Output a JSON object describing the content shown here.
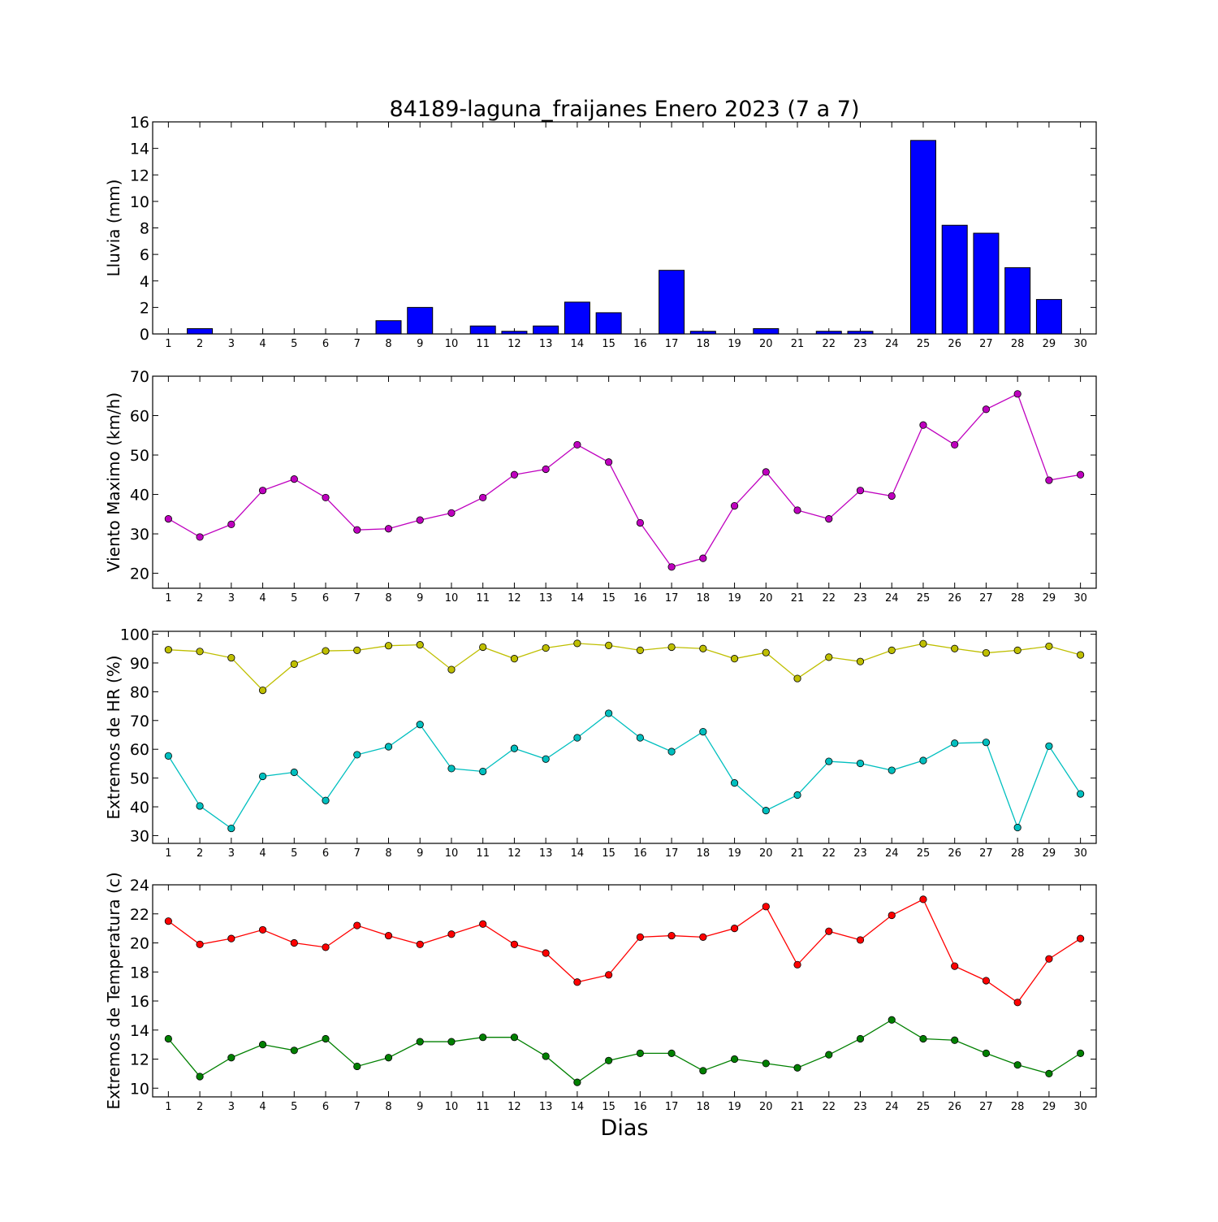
{
  "title": "84189-laguna_fraijanes Enero 2023  (7 a 7)",
  "xlabel": "Dias",
  "chart_data": [
    {
      "type": "bar",
      "ylabel": "Lluvia (mm)",
      "ylim": [
        0,
        16
      ],
      "yticks": [
        0,
        2,
        4,
        6,
        8,
        10,
        12,
        14,
        16
      ],
      "x": [
        1,
        2,
        3,
        4,
        5,
        6,
        7,
        8,
        9,
        10,
        11,
        12,
        13,
        14,
        15,
        16,
        17,
        18,
        19,
        20,
        21,
        22,
        23,
        24,
        25,
        26,
        27,
        28,
        29,
        30
      ],
      "series": [
        {
          "color": "#0000ff",
          "values": [
            0,
            0.4,
            0,
            0,
            0,
            0,
            0,
            1.0,
            2.0,
            0,
            0.6,
            0.2,
            0.6,
            2.4,
            1.6,
            0,
            4.8,
            0.2,
            0,
            0.4,
            0,
            0.2,
            0.2,
            0,
            14.6,
            8.2,
            7.6,
            5.0,
            2.6,
            0
          ]
        }
      ]
    },
    {
      "type": "line",
      "ylabel": "Viento Maximo (km/h)",
      "ylim": [
        16.2,
        70
      ],
      "yticks": [
        20,
        30,
        40,
        50,
        60,
        70
      ],
      "x": [
        1,
        2,
        3,
        4,
        5,
        6,
        7,
        8,
        9,
        10,
        11,
        12,
        13,
        14,
        15,
        16,
        17,
        18,
        19,
        20,
        21,
        22,
        23,
        24,
        25,
        26,
        27,
        28,
        29,
        30
      ],
      "series": [
        {
          "color": "#bf00bf",
          "values": [
            33.8,
            29.2,
            32.4,
            41.0,
            43.9,
            39.2,
            31.0,
            31.3,
            33.5,
            35.3,
            39.2,
            45.0,
            46.4,
            52.6,
            48.2,
            32.8,
            21.6,
            23.8,
            37.1,
            45.7,
            36.0,
            33.8,
            41.0,
            39.6,
            57.6,
            52.6,
            61.6,
            65.5,
            43.6,
            45.0
          ]
        }
      ]
    },
    {
      "type": "line",
      "ylabel": "Extremos de HR (%)",
      "ylim": [
        27.3,
        101
      ],
      "yticks": [
        30,
        40,
        50,
        60,
        70,
        80,
        90,
        100
      ],
      "x": [
        1,
        2,
        3,
        4,
        5,
        6,
        7,
        8,
        9,
        10,
        11,
        12,
        13,
        14,
        15,
        16,
        17,
        18,
        19,
        20,
        21,
        22,
        23,
        24,
        25,
        26,
        27,
        28,
        29,
        30
      ],
      "series": [
        {
          "color": "#bfbf00",
          "values": [
            94.6,
            94.0,
            91.8,
            80.5,
            89.6,
            94.2,
            94.4,
            96.0,
            96.3,
            87.7,
            95.5,
            91.5,
            95.2,
            96.8,
            96.1,
            94.4,
            95.5,
            95.0,
            91.5,
            93.6,
            84.6,
            92.0,
            90.5,
            94.4,
            96.7,
            95.0,
            93.5,
            94.4,
            95.8,
            92.8
          ]
        },
        {
          "color": "#00bfbf",
          "values": [
            57.7,
            40.3,
            32.5,
            50.6,
            52.0,
            42.2,
            58.1,
            60.9,
            68.6,
            53.3,
            52.3,
            60.3,
            56.6,
            64.0,
            72.5,
            64.0,
            59.2,
            66.1,
            48.3,
            38.7,
            44.1,
            55.8,
            55.1,
            52.7,
            56.1,
            62.1,
            62.4,
            32.8,
            61.1,
            44.5
          ]
        }
      ]
    },
    {
      "type": "line",
      "ylabel": "Extremos de Temperatura (c)",
      "ylim": [
        9.4,
        24
      ],
      "yticks": [
        10,
        12,
        14,
        16,
        18,
        20,
        22,
        24
      ],
      "x": [
        1,
        2,
        3,
        4,
        5,
        6,
        7,
        8,
        9,
        10,
        11,
        12,
        13,
        14,
        15,
        16,
        17,
        18,
        19,
        20,
        21,
        22,
        23,
        24,
        25,
        26,
        27,
        28,
        29,
        30
      ],
      "series": [
        {
          "color": "#ff0000",
          "values": [
            21.5,
            19.9,
            20.3,
            20.9,
            20.0,
            19.7,
            21.2,
            20.5,
            19.9,
            20.6,
            21.3,
            19.9,
            19.3,
            17.3,
            17.8,
            20.4,
            20.5,
            20.4,
            21.0,
            22.5,
            18.5,
            20.8,
            20.2,
            21.9,
            23.0,
            18.4,
            17.4,
            15.9,
            18.9,
            20.3
          ]
        },
        {
          "color": "#008000",
          "values": [
            13.4,
            10.8,
            12.1,
            13.0,
            12.6,
            13.4,
            11.5,
            12.1,
            13.2,
            13.2,
            13.5,
            13.5,
            12.2,
            10.4,
            11.9,
            12.4,
            12.4,
            11.2,
            12.0,
            11.7,
            11.4,
            12.3,
            13.4,
            14.7,
            13.4,
            13.3,
            12.4,
            11.6,
            11.0,
            12.4
          ]
        }
      ]
    }
  ]
}
